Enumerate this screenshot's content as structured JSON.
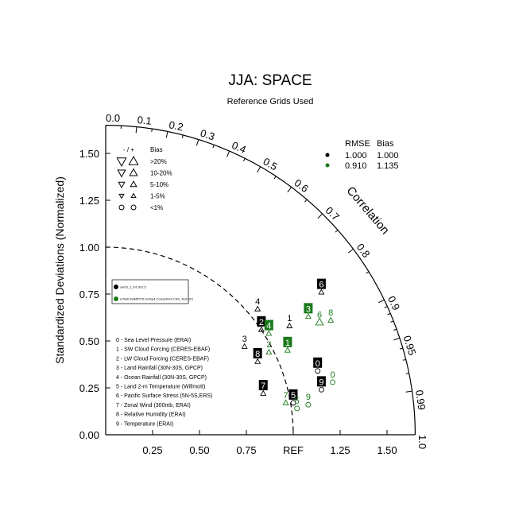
{
  "chart_data": {
    "type": "taylor",
    "title": "JJA: SPACE",
    "subtitle": "Reference Grids Used",
    "ylabel": "Standardized Deviations (Normalized)",
    "arc_label": "Correlation",
    "ref_label": "REF",
    "std_max": 1.65,
    "std_ticks_y": [
      "0.00",
      "0.25",
      "0.50",
      "0.75",
      "1.00",
      "1.25",
      "1.50"
    ],
    "std_ticks_x": [
      "0.25",
      "0.50",
      "0.75",
      "1.25",
      "1.50"
    ],
    "corr_ticks": [
      "0.0",
      "0.1",
      "0.2",
      "0.3",
      "0.4",
      "0.5",
      "0.6",
      "0.7",
      "0.8",
      "0.9",
      "0.95",
      "0.99",
      "1.0"
    ],
    "colors": {
      "model1": "#000000",
      "model2": "#1a7a1a"
    },
    "stats": {
      "headers": [
        "RMSE",
        "Bias"
      ],
      "rows": [
        {
          "color": "#000000",
          "rmse": "1.000",
          "bias": "1.000"
        },
        {
          "color": "#1a7a1a",
          "rmse": "0.910",
          "bias": "1.135"
        }
      ]
    },
    "bias_legend": {
      "header_sign": "- / +",
      "header": "Bias",
      "items": [
        ">20%",
        "10-20%",
        "5-10%",
        "1-5%",
        "<1%"
      ]
    },
    "models": [
      {
        "name": "cam5_1_fv1.9x2.5",
        "color": "#000000"
      },
      {
        "name": "e.fbwb.FAMIPC5.ne0np4.Conus30x4.Clim_Test.001",
        "color": "#1a7a1a"
      }
    ],
    "variables": [
      "0 - Sea Level Pressure (ERAI)",
      "1 - SW Cloud Forcing (CERES-EBAF)",
      "2 - LW Cloud Forcing (CERES-EBAF)",
      "3 - Land Rainfall (30N-30S, GPCP)",
      "4 - Ocean Rainfall (30N-30S, GPCP)",
      "5 - Land 2-m Temperature (Willmott)",
      "6 - Pacific Surface Stress (5N-5S,ERS)",
      "7 - Zonal Wind (300mb, ERAI)",
      "8 - Relative Humidity (ERAI)",
      "9 - Temperature (ERAI)"
    ],
    "points": [
      {
        "label": "0",
        "model": 0,
        "x": 1.13,
        "y": 0.34,
        "marker": "circle",
        "boxed": true
      },
      {
        "label": "1",
        "model": 0,
        "x": 0.98,
        "y": 0.58,
        "marker": "tri-up",
        "boxed": false
      },
      {
        "label": "2",
        "model": 0,
        "x": 0.83,
        "y": 0.56,
        "marker": "tri-up",
        "boxed": true
      },
      {
        "label": "3",
        "model": 0,
        "x": 0.74,
        "y": 0.47,
        "marker": "tri-up",
        "boxed": false
      },
      {
        "label": "4",
        "model": 0,
        "x": 0.81,
        "y": 0.67,
        "marker": "tri-up",
        "boxed": false
      },
      {
        "label": "5",
        "model": 0,
        "x": 1.0,
        "y": 0.17,
        "marker": "circle",
        "boxed": true
      },
      {
        "label": "6",
        "model": 0,
        "x": 1.15,
        "y": 0.76,
        "marker": "tri-up",
        "boxed": true
      },
      {
        "label": "7",
        "model": 0,
        "x": 0.84,
        "y": 0.22,
        "marker": "tri-up",
        "boxed": true
      },
      {
        "label": "8",
        "model": 0,
        "x": 0.81,
        "y": 0.39,
        "marker": "tri-up",
        "boxed": true
      },
      {
        "label": "9",
        "model": 0,
        "x": 1.15,
        "y": 0.24,
        "marker": "circle",
        "boxed": true
      },
      {
        "label": "0",
        "model": 1,
        "x": 1.21,
        "y": 0.28,
        "marker": "circle",
        "boxed": false
      },
      {
        "label": "1",
        "model": 1,
        "x": 0.97,
        "y": 0.45,
        "marker": "tri-up",
        "boxed": true
      },
      {
        "label": "2",
        "model": 1,
        "x": 0.87,
        "y": 0.44,
        "marker": "tri-up",
        "boxed": false
      },
      {
        "label": "3",
        "model": 1,
        "x": 1.08,
        "y": 0.63,
        "marker": "tri-up",
        "boxed": true
      },
      {
        "label": "4",
        "model": 1,
        "x": 0.87,
        "y": 0.54,
        "marker": "tri-up",
        "boxed": true
      },
      {
        "label": "5",
        "model": 1,
        "x": 1.02,
        "y": 0.14,
        "marker": "circle",
        "boxed": false
      },
      {
        "label": "6",
        "model": 1,
        "x": 1.14,
        "y": 0.6,
        "marker": "tri-up-large",
        "boxed": false
      },
      {
        "label": "7",
        "model": 1,
        "x": 0.96,
        "y": 0.17,
        "marker": "tri-up",
        "boxed": false
      },
      {
        "label": "8",
        "model": 1,
        "x": 1.2,
        "y": 0.61,
        "marker": "tri-up",
        "boxed": false
      },
      {
        "label": "9",
        "model": 1,
        "x": 1.08,
        "y": 0.16,
        "marker": "circle",
        "boxed": false
      }
    ]
  }
}
